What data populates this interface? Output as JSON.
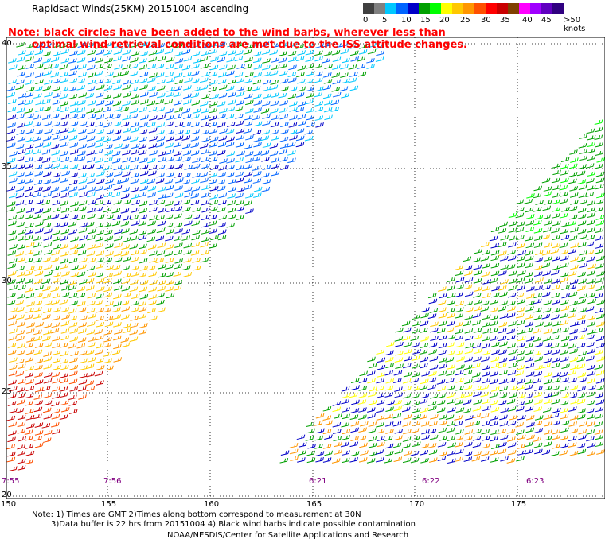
{
  "title": "Rapidsact Winds(25KM) 20151004 ascending",
  "note": {
    "line1": "Note: black circles have been added to the wind barbs, wherever less than",
    "line2": "optimal wind retrieval conditions are met due to the ISS attitude changes."
  },
  "legend": {
    "labels": [
      "0",
      "5",
      "10",
      "15",
      "20",
      "25",
      "30",
      "35",
      "40",
      "45",
      ">50 knots"
    ],
    "colors": [
      "#404040",
      "#808080",
      "#00c8ff",
      "#0064ff",
      "#0000c8",
      "#00a000",
      "#00ff00",
      "#ffff00",
      "#ffc800",
      "#ff9600",
      "#ff5000",
      "#ff0000",
      "#c80000",
      "#804000",
      "#ff00ff",
      "#a000ff",
      "#6000c0",
      "#300080"
    ]
  },
  "map": {
    "lat_labels": [
      "40",
      "35",
      "30",
      "25",
      "20"
    ],
    "lon_labels": [
      "150",
      "155",
      "160",
      "165",
      "170",
      "175"
    ],
    "time_labels": [
      "7:55",
      "7:56",
      "6:21",
      "6:22",
      "6:23"
    ]
  },
  "footer": {
    "line1": "Note: 1) Times are GMT 2)Times along bottom correspond to measurement at 30N",
    "line2": "3)Data buffer is 22 hrs from 20151004 4) Black wind barbs indicate possible contamination",
    "credit": "NOAA/NESDIS/Center for Satellite Applications and Research"
  }
}
